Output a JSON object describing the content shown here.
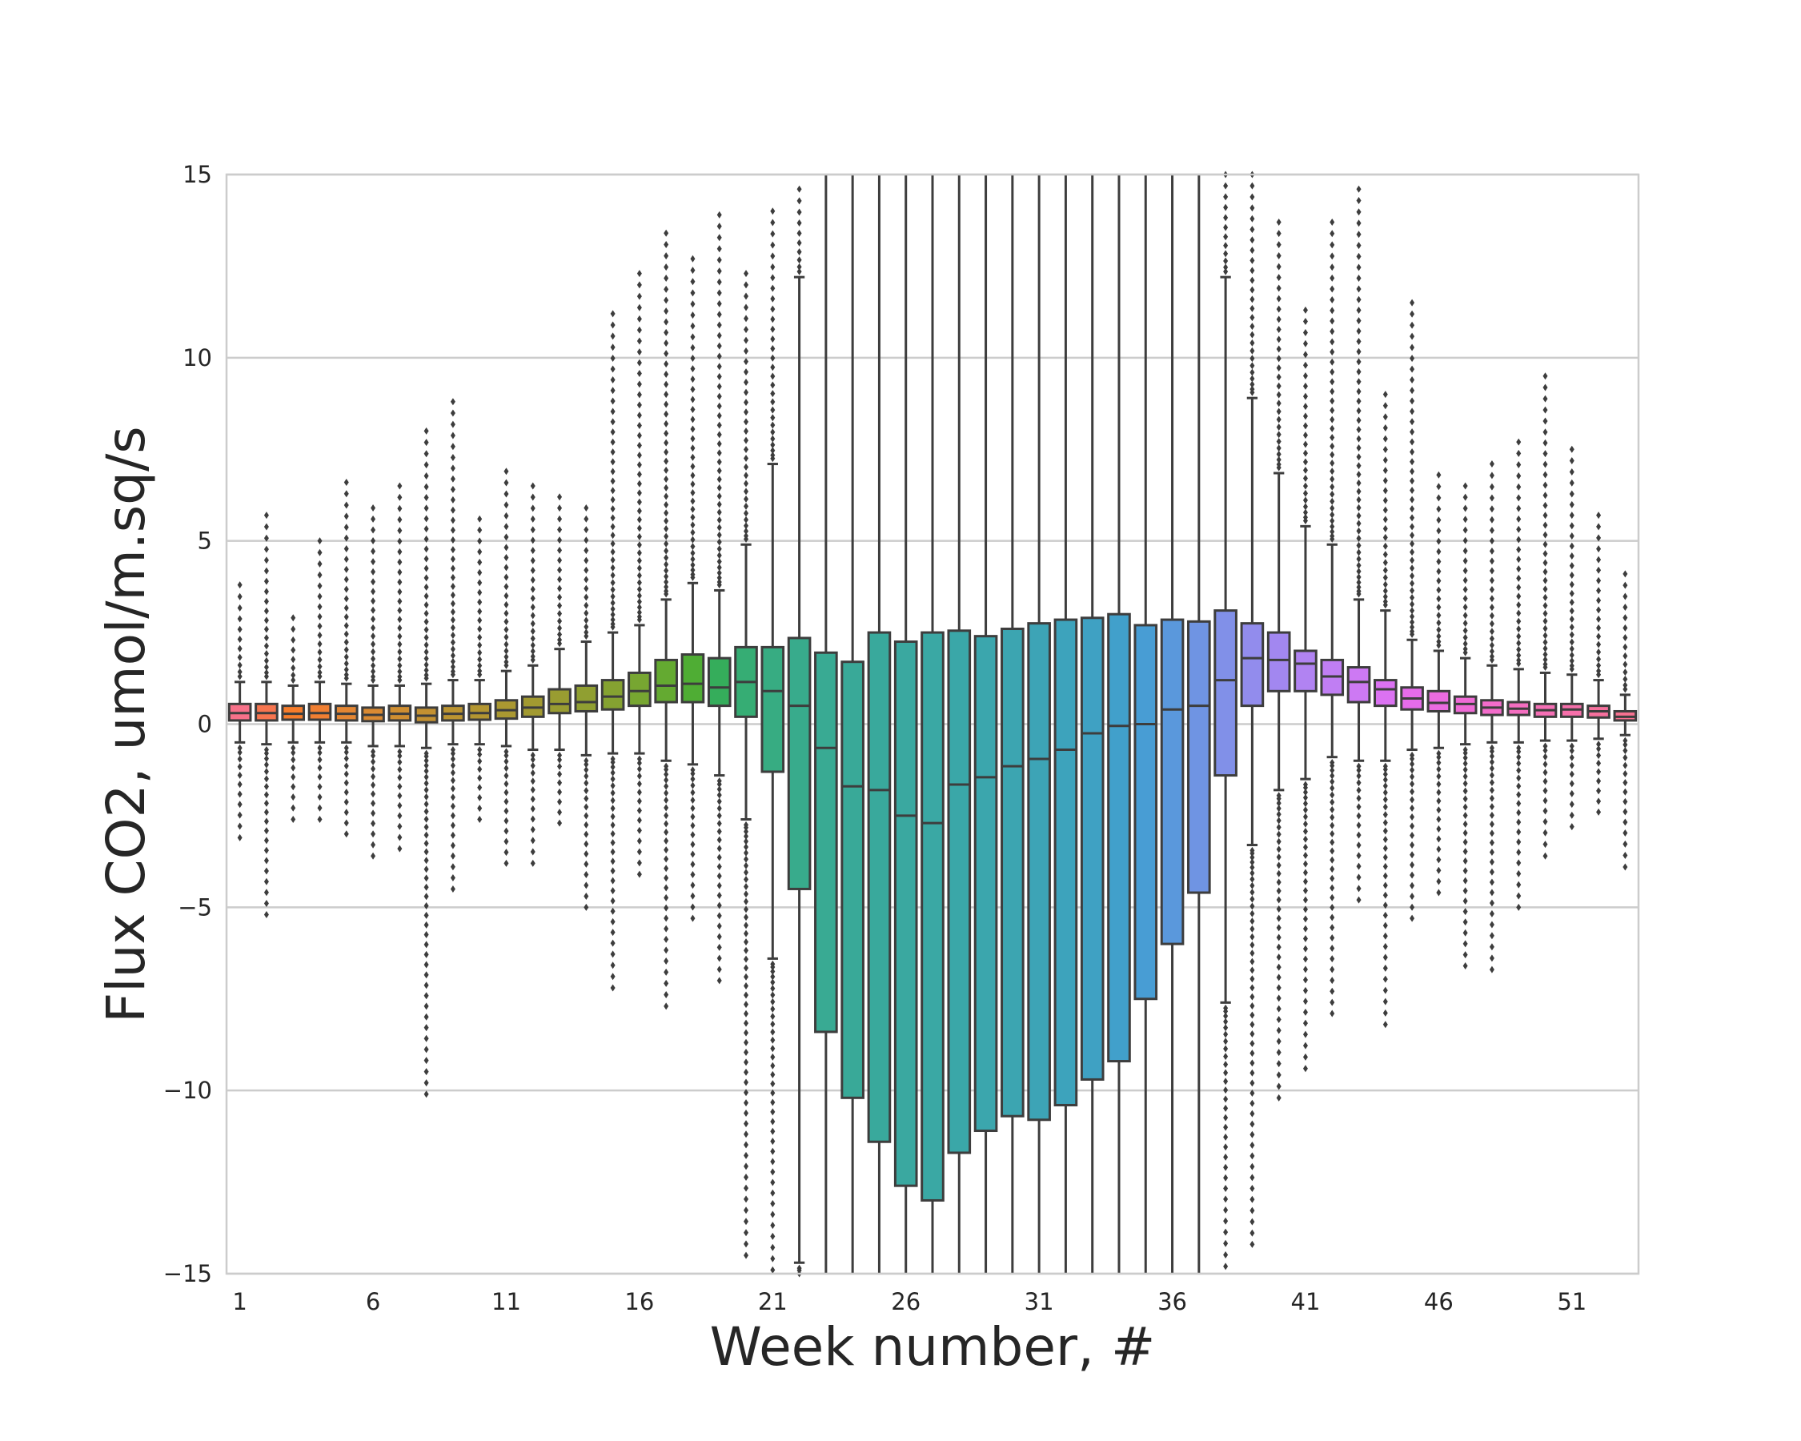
{
  "chart_data": {
    "type": "box",
    "title": "",
    "xlabel": "Week number, #",
    "ylabel": "Flux CO2, umol/m.sq/s",
    "ylim": [
      -15,
      15
    ],
    "yticks": [
      -15,
      -10,
      -5,
      0,
      5,
      10,
      15
    ],
    "ytick_labels": [
      "−15",
      "−10",
      "−5",
      "0",
      "5",
      "10",
      "15"
    ],
    "xtick_labels": [
      "1",
      "6",
      "11",
      "16",
      "21",
      "26",
      "31",
      "36",
      "41",
      "46",
      "51"
    ],
    "xtick_weeks": [
      1,
      6,
      11,
      16,
      21,
      26,
      31,
      36,
      41,
      46,
      51
    ],
    "grid": "horizontal",
    "legend": "none",
    "weeks": [
      1,
      2,
      3,
      4,
      5,
      6,
      7,
      8,
      9,
      10,
      11,
      12,
      13,
      14,
      15,
      16,
      17,
      18,
      19,
      20,
      21,
      22,
      23,
      24,
      25,
      26,
      27,
      28,
      29,
      30,
      31,
      32,
      33,
      34,
      35,
      36,
      37,
      38,
      39,
      40,
      41,
      42,
      43,
      44,
      45,
      46,
      47,
      48,
      49,
      50,
      51,
      52,
      53
    ],
    "colors": [
      "#f77189",
      "#f7754f",
      "#f67c2a",
      "#f07f32",
      "#e48633",
      "#da8a32",
      "#cf8e31",
      "#c49131",
      "#bb9431",
      "#b39631",
      "#aa9831",
      "#a29a31",
      "#999c31",
      "#909f31",
      "#85a231",
      "#77a631",
      "#64aa31",
      "#4fad34",
      "#35ad5b",
      "#36ad74",
      "#37ac82",
      "#38ab8c",
      "#39aa93",
      "#39a998",
      "#39a99c",
      "#3aa8a0",
      "#3aa8a4",
      "#3aa7a8",
      "#3ba6ad",
      "#3ca5b1",
      "#3da4b6",
      "#3da3bc",
      "#3fa1c3",
      "#41a0cb",
      "#489dd4",
      "#5a98dc",
      "#6f94e3",
      "#8190e8",
      "#928ced",
      "#a287f0",
      "#b183f2",
      "#c07ef3",
      "#cd79f3",
      "#db72f2",
      "#e66cea",
      "#eb6be0",
      "#f06ad6",
      "#f36ccb",
      "#f46ec0",
      "#f56fb5",
      "#f66faa",
      "#f6709d",
      "#f77190"
    ],
    "median": [
      0.3,
      0.3,
      0.28,
      0.3,
      0.28,
      0.25,
      0.28,
      0.23,
      0.28,
      0.3,
      0.38,
      0.45,
      0.55,
      0.6,
      0.75,
      0.9,
      1.05,
      1.1,
      1.0,
      1.15,
      0.9,
      0.5,
      -0.65,
      -1.7,
      -1.8,
      -2.5,
      -2.7,
      -1.65,
      -1.45,
      -1.15,
      -0.95,
      -0.7,
      -0.25,
      -0.05,
      0.0,
      0.4,
      0.5,
      1.2,
      1.8,
      1.75,
      1.65,
      1.3,
      1.15,
      0.95,
      0.7,
      0.58,
      0.55,
      0.45,
      0.42,
      0.38,
      0.4,
      0.35,
      0.2
    ],
    "q1": [
      0.1,
      0.1,
      0.12,
      0.12,
      0.1,
      0.08,
      0.1,
      0.05,
      0.1,
      0.12,
      0.15,
      0.2,
      0.3,
      0.35,
      0.4,
      0.5,
      0.6,
      0.6,
      0.5,
      0.2,
      -1.3,
      -4.5,
      -8.4,
      -10.2,
      -11.4,
      -12.6,
      -13.0,
      -11.7,
      -11.1,
      -10.7,
      -10.8,
      -10.4,
      -9.7,
      -9.2,
      -7.5,
      -6.0,
      -4.6,
      -1.4,
      0.5,
      0.9,
      0.9,
      0.8,
      0.6,
      0.5,
      0.4,
      0.35,
      0.3,
      0.25,
      0.25,
      0.2,
      0.2,
      0.18,
      0.1
    ],
    "q3": [
      0.55,
      0.55,
      0.5,
      0.55,
      0.5,
      0.45,
      0.5,
      0.45,
      0.5,
      0.55,
      0.65,
      0.75,
      0.95,
      1.05,
      1.2,
      1.4,
      1.75,
      1.9,
      1.8,
      2.1,
      2.1,
      2.35,
      1.95,
      1.7,
      2.5,
      2.25,
      2.5,
      2.55,
      2.4,
      2.6,
      2.75,
      2.85,
      2.9,
      3.0,
      2.7,
      2.85,
      2.8,
      3.1,
      2.75,
      2.5,
      2.0,
      1.75,
      1.55,
      1.2,
      1.0,
      0.9,
      0.75,
      0.65,
      0.6,
      0.55,
      0.55,
      0.5,
      0.35
    ],
    "whisker_low": [
      -0.5,
      -0.55,
      -0.5,
      -0.5,
      -0.5,
      -0.6,
      -0.6,
      -0.65,
      -0.55,
      -0.55,
      -0.6,
      -0.7,
      -0.7,
      -0.85,
      -0.8,
      -0.8,
      -1.0,
      -1.1,
      -1.4,
      -2.6,
      -6.4,
      -14.7,
      -15,
      -15,
      -15,
      -15,
      -15,
      -15,
      -15,
      -15,
      -15,
      -15,
      -15,
      -15,
      -15,
      -15,
      -15,
      -7.6,
      -3.3,
      -1.8,
      -1.5,
      -0.9,
      -1.0,
      -1.0,
      -0.7,
      -0.65,
      -0.55,
      -0.5,
      -0.5,
      -0.45,
      -0.45,
      -0.4,
      -0.3
    ],
    "whisker_high": [
      1.15,
      1.15,
      1.05,
      1.15,
      1.1,
      1.05,
      1.05,
      1.1,
      1.2,
      1.2,
      1.45,
      1.6,
      2.05,
      2.25,
      2.5,
      2.7,
      3.4,
      3.85,
      3.65,
      4.9,
      7.1,
      12.2,
      15,
      15,
      15,
      15,
      15,
      15,
      15,
      15,
      15,
      15,
      15,
      15,
      15,
      15,
      15,
      12.2,
      8.9,
      6.85,
      5.4,
      4.9,
      3.4,
      3.1,
      2.3,
      2.0,
      1.8,
      1.6,
      1.5,
      1.4,
      1.35,
      1.2,
      0.8
    ],
    "outlier_low": [
      -3.1,
      -5.2,
      -2.6,
      -2.6,
      -3.0,
      -3.6,
      -3.4,
      -10.1,
      -4.5,
      -2.6,
      -3.8,
      -3.8,
      -2.7,
      -5.0,
      -7.2,
      -4.1,
      -7.7,
      -5.3,
      -7.0,
      -14.5,
      -14.9,
      -15,
      -15,
      -15,
      -15,
      -15,
      -15,
      -15,
      -15,
      -15,
      -15,
      -15,
      -15,
      -15,
      -15,
      -15,
      -15,
      -14.8,
      -14.2,
      -10.2,
      -9.4,
      -7.9,
      -4.8,
      -8.2,
      -5.3,
      -4.6,
      -6.6,
      -6.7,
      -5.0,
      -3.6,
      -2.8,
      -2.4,
      -3.9
    ],
    "outlier_high": [
      3.8,
      5.7,
      2.9,
      5.0,
      6.6,
      5.9,
      6.5,
      8.0,
      8.8,
      5.6,
      6.9,
      6.5,
      6.2,
      5.9,
      11.2,
      12.3,
      13.4,
      12.7,
      13.9,
      12.3,
      14.0,
      14.6,
      15,
      15,
      15,
      15,
      15,
      15,
      15,
      15,
      15,
      15,
      15,
      15,
      15,
      15,
      15,
      15,
      15,
      13.7,
      11.3,
      13.7,
      14.6,
      9.0,
      11.5,
      6.8,
      6.5,
      7.1,
      7.7,
      9.5,
      7.5,
      5.7,
      4.1
    ]
  }
}
